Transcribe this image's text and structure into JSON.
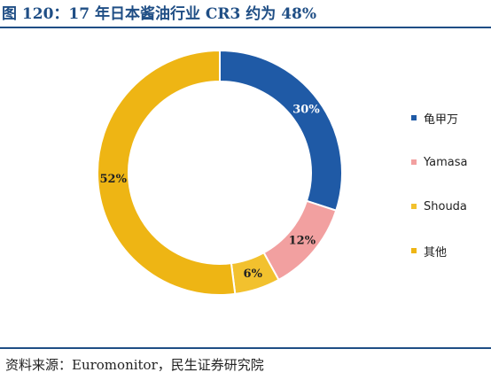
{
  "title": "图 120：17 年日本酱油行业 CR3 约为 48%",
  "source": "资料来源：Euromonitor，民生证券研究院",
  "chart_data": {
    "type": "pie",
    "categories": [
      "龟甲万",
      "Yamasa",
      "Shouda",
      "其他"
    ],
    "values": [
      30,
      12,
      6,
      52
    ],
    "data_labels": [
      "30%",
      "12%",
      "6%",
      "52%"
    ],
    "colors": [
      "#1f5aa6",
      "#f2a0a0",
      "#f2c12e",
      "#eeb514"
    ],
    "donut": true,
    "legend_position": "right"
  }
}
